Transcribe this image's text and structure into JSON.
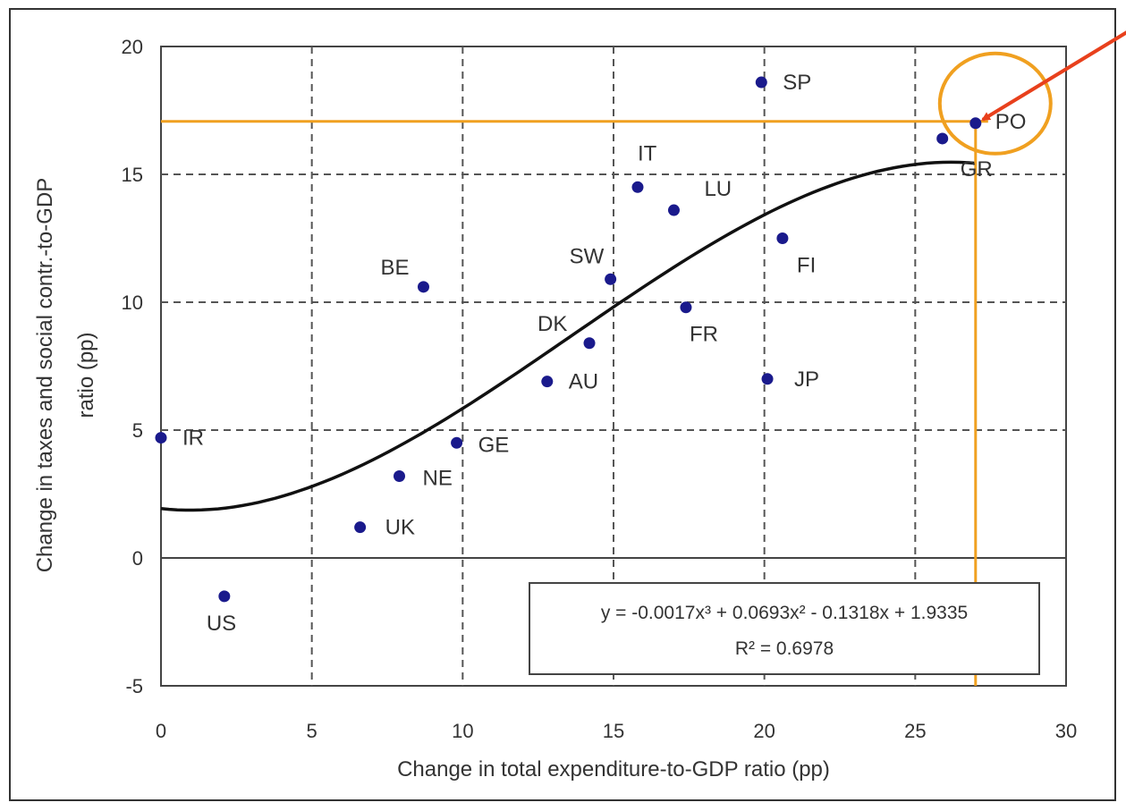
{
  "chart_data": {
    "type": "scatter",
    "title": "",
    "xlabel": "Change in total expenditure-to-GDP ratio (pp)",
    "ylabel_line1": "Change in taxes and social contr.-to-GDP",
    "ylabel_line2": "ratio (pp)",
    "xlim": [
      0,
      30
    ],
    "ylim": [
      -5,
      20
    ],
    "xticks": [
      0,
      5,
      10,
      15,
      20,
      25,
      30
    ],
    "yticks": [
      -5,
      0,
      5,
      10,
      15,
      20
    ],
    "grid": true,
    "points": [
      {
        "label": "IR",
        "x": 0.0,
        "y": 4.7
      },
      {
        "label": "US",
        "x": 2.1,
        "y": -1.5
      },
      {
        "label": "UK",
        "x": 6.6,
        "y": 1.2
      },
      {
        "label": "NE",
        "x": 7.9,
        "y": 3.2
      },
      {
        "label": "BE",
        "x": 8.7,
        "y": 10.6
      },
      {
        "label": "GE",
        "x": 9.8,
        "y": 4.5
      },
      {
        "label": "AU",
        "x": 12.8,
        "y": 6.9
      },
      {
        "label": "DK",
        "x": 14.2,
        "y": 8.4
      },
      {
        "label": "SW",
        "x": 14.9,
        "y": 10.9
      },
      {
        "label": "IT",
        "x": 15.8,
        "y": 14.5
      },
      {
        "label": "LU",
        "x": 17.0,
        "y": 13.6
      },
      {
        "label": "FR",
        "x": 17.4,
        "y": 9.8
      },
      {
        "label": "SP",
        "x": 19.9,
        "y": 18.6
      },
      {
        "label": "JP",
        "x": 20.1,
        "y": 7.0
      },
      {
        "label": "FI",
        "x": 20.6,
        "y": 12.5
      },
      {
        "label": "GR",
        "x": 25.9,
        "y": 16.4
      },
      {
        "label": "PO",
        "x": 27.0,
        "y": 17.0
      }
    ],
    "trendline": {
      "type": "polynomial",
      "order": 3,
      "coefficients": [
        -0.0017,
        0.0693,
        -0.1318,
        1.9335
      ],
      "equation": "y = -0.0017x³ + 0.0693x² - 0.1318x + 1.9335",
      "r_squared": "R² = 0.6978"
    },
    "highlight": {
      "label": "PO",
      "x": 27.0,
      "y": 17.0,
      "line_color": "#f0a020",
      "arrow_color": "#e8401c"
    },
    "colors": {
      "points": "#1a1a8c",
      "trend": "#111111",
      "grid": "#555555",
      "text": "#333333"
    }
  }
}
